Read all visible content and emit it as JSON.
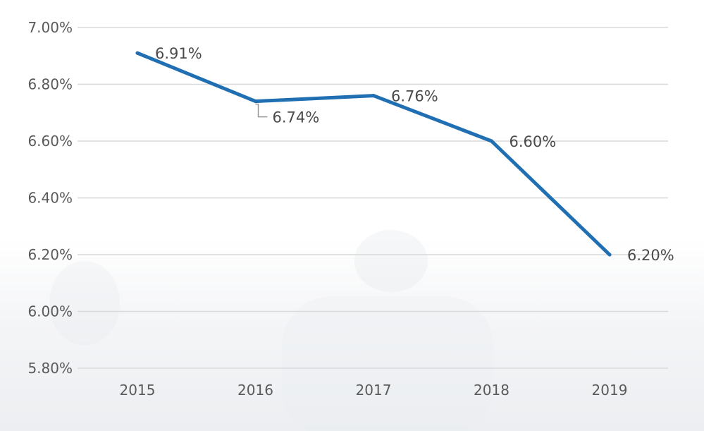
{
  "chart_data": {
    "type": "line",
    "categories": [
      "2015",
      "2016",
      "2017",
      "2018",
      "2019"
    ],
    "series": [
      {
        "values": [
          6.91,
          6.74,
          6.76,
          6.6,
          6.2
        ],
        "data_labels": [
          "6.91%",
          "6.74%",
          "6.76%",
          "6.60%",
          "6.20%"
        ]
      }
    ],
    "yticks": [
      7.0,
      6.8,
      6.6,
      6.4,
      6.2,
      6.0,
      5.8
    ],
    "ytick_labels": [
      "7.00%",
      "6.80%",
      "6.60%",
      "6.40%",
      "6.20%",
      "6.00%",
      "5.80%"
    ],
    "ylim": [
      5.8,
      7.0
    ],
    "grid": "horizontal",
    "title": "",
    "xlabel": "",
    "ylabel": "",
    "colors": {
      "line": "#1f6fb2",
      "grid": "#d9d9d9",
      "leader": "#999999"
    }
  }
}
